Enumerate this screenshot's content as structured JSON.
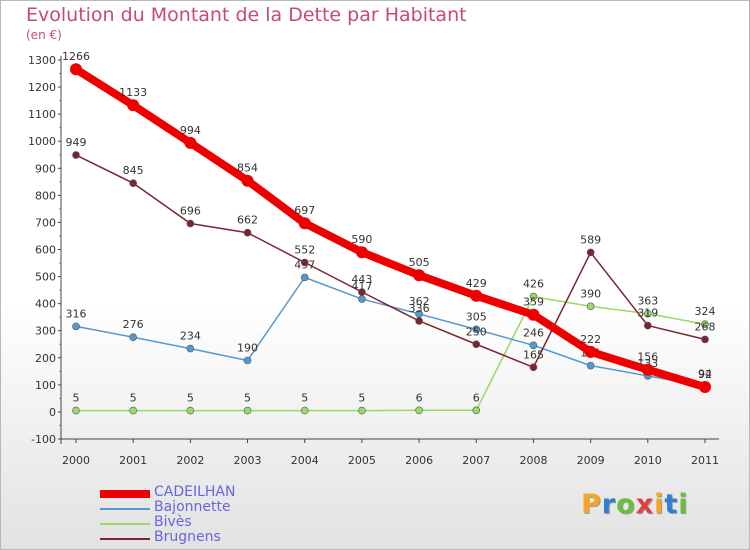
{
  "title": "Evolution du Montant de la Dette par Habitant",
  "unit": "(en €)",
  "logo": {
    "text": "Proxiti",
    "colors": [
      "#f5a623",
      "#2e7fd0",
      "#6bbf3a",
      "#e04040",
      "#f5a623",
      "#2e7fd0",
      "#6bbf3a"
    ]
  },
  "chart_data": {
    "type": "line",
    "x": [
      2000,
      2001,
      2002,
      2003,
      2004,
      2005,
      2006,
      2007,
      2008,
      2009,
      2010,
      2011
    ],
    "ylim": [
      -100,
      1300
    ],
    "yticks": [
      -100,
      0,
      100,
      200,
      300,
      400,
      500,
      600,
      700,
      800,
      900,
      1000,
      1100,
      1200,
      1300
    ],
    "grid": false,
    "legend_position": "bottom-left",
    "series": [
      {
        "name": "Bivès",
        "color": "#9ad86a",
        "values": [
          5,
          5,
          5,
          5,
          5,
          5,
          6,
          6,
          426,
          390,
          363,
          324
        ],
        "labels": [
          "5",
          "5",
          "5",
          "5",
          "5",
          "5",
          "6",
          "6",
          "426",
          "390",
          "363",
          "324"
        ]
      },
      {
        "name": "Bajonnette",
        "color": "#5599d0",
        "values": [
          316,
          276,
          234,
          190,
          497,
          417,
          362,
          305,
          246,
          171,
          133,
          94
        ],
        "labels": [
          "316",
          "276",
          "234",
          "190",
          "497",
          "417",
          "362",
          "305",
          "246",
          "171",
          "133",
          "94"
        ]
      },
      {
        "name": "Brugnens",
        "color": "#7a2630",
        "values": [
          949,
          845,
          696,
          662,
          552,
          443,
          336,
          250,
          165,
          589,
          319,
          268
        ],
        "labels": [
          "949",
          "845",
          "696",
          "662",
          "552",
          "443",
          "336",
          "250",
          "165",
          "589",
          "319",
          "268"
        ]
      },
      {
        "name": "CADEILHAN",
        "color": "#ee0000",
        "values": [
          1266,
          1133,
          994,
          854,
          697,
          590,
          505,
          429,
          359,
          222,
          156,
          92
        ],
        "labels": [
          "1266",
          "1133",
          "994",
          "854",
          "697",
          "590",
          "505",
          "429",
          "359",
          "222",
          "156",
          "92"
        ]
      }
    ]
  },
  "legend": [
    {
      "name": "CADEILHAN",
      "color": "#ee0000",
      "text_color": "#6666dd"
    },
    {
      "name": "Bajonnette",
      "color": "#5599d0",
      "text_color": "#6666dd"
    },
    {
      "name": "Bivès",
      "color": "#9ad86a",
      "text_color": "#6666dd"
    },
    {
      "name": "Brugnens",
      "color": "#7a2630",
      "text_color": "#6666dd"
    }
  ]
}
